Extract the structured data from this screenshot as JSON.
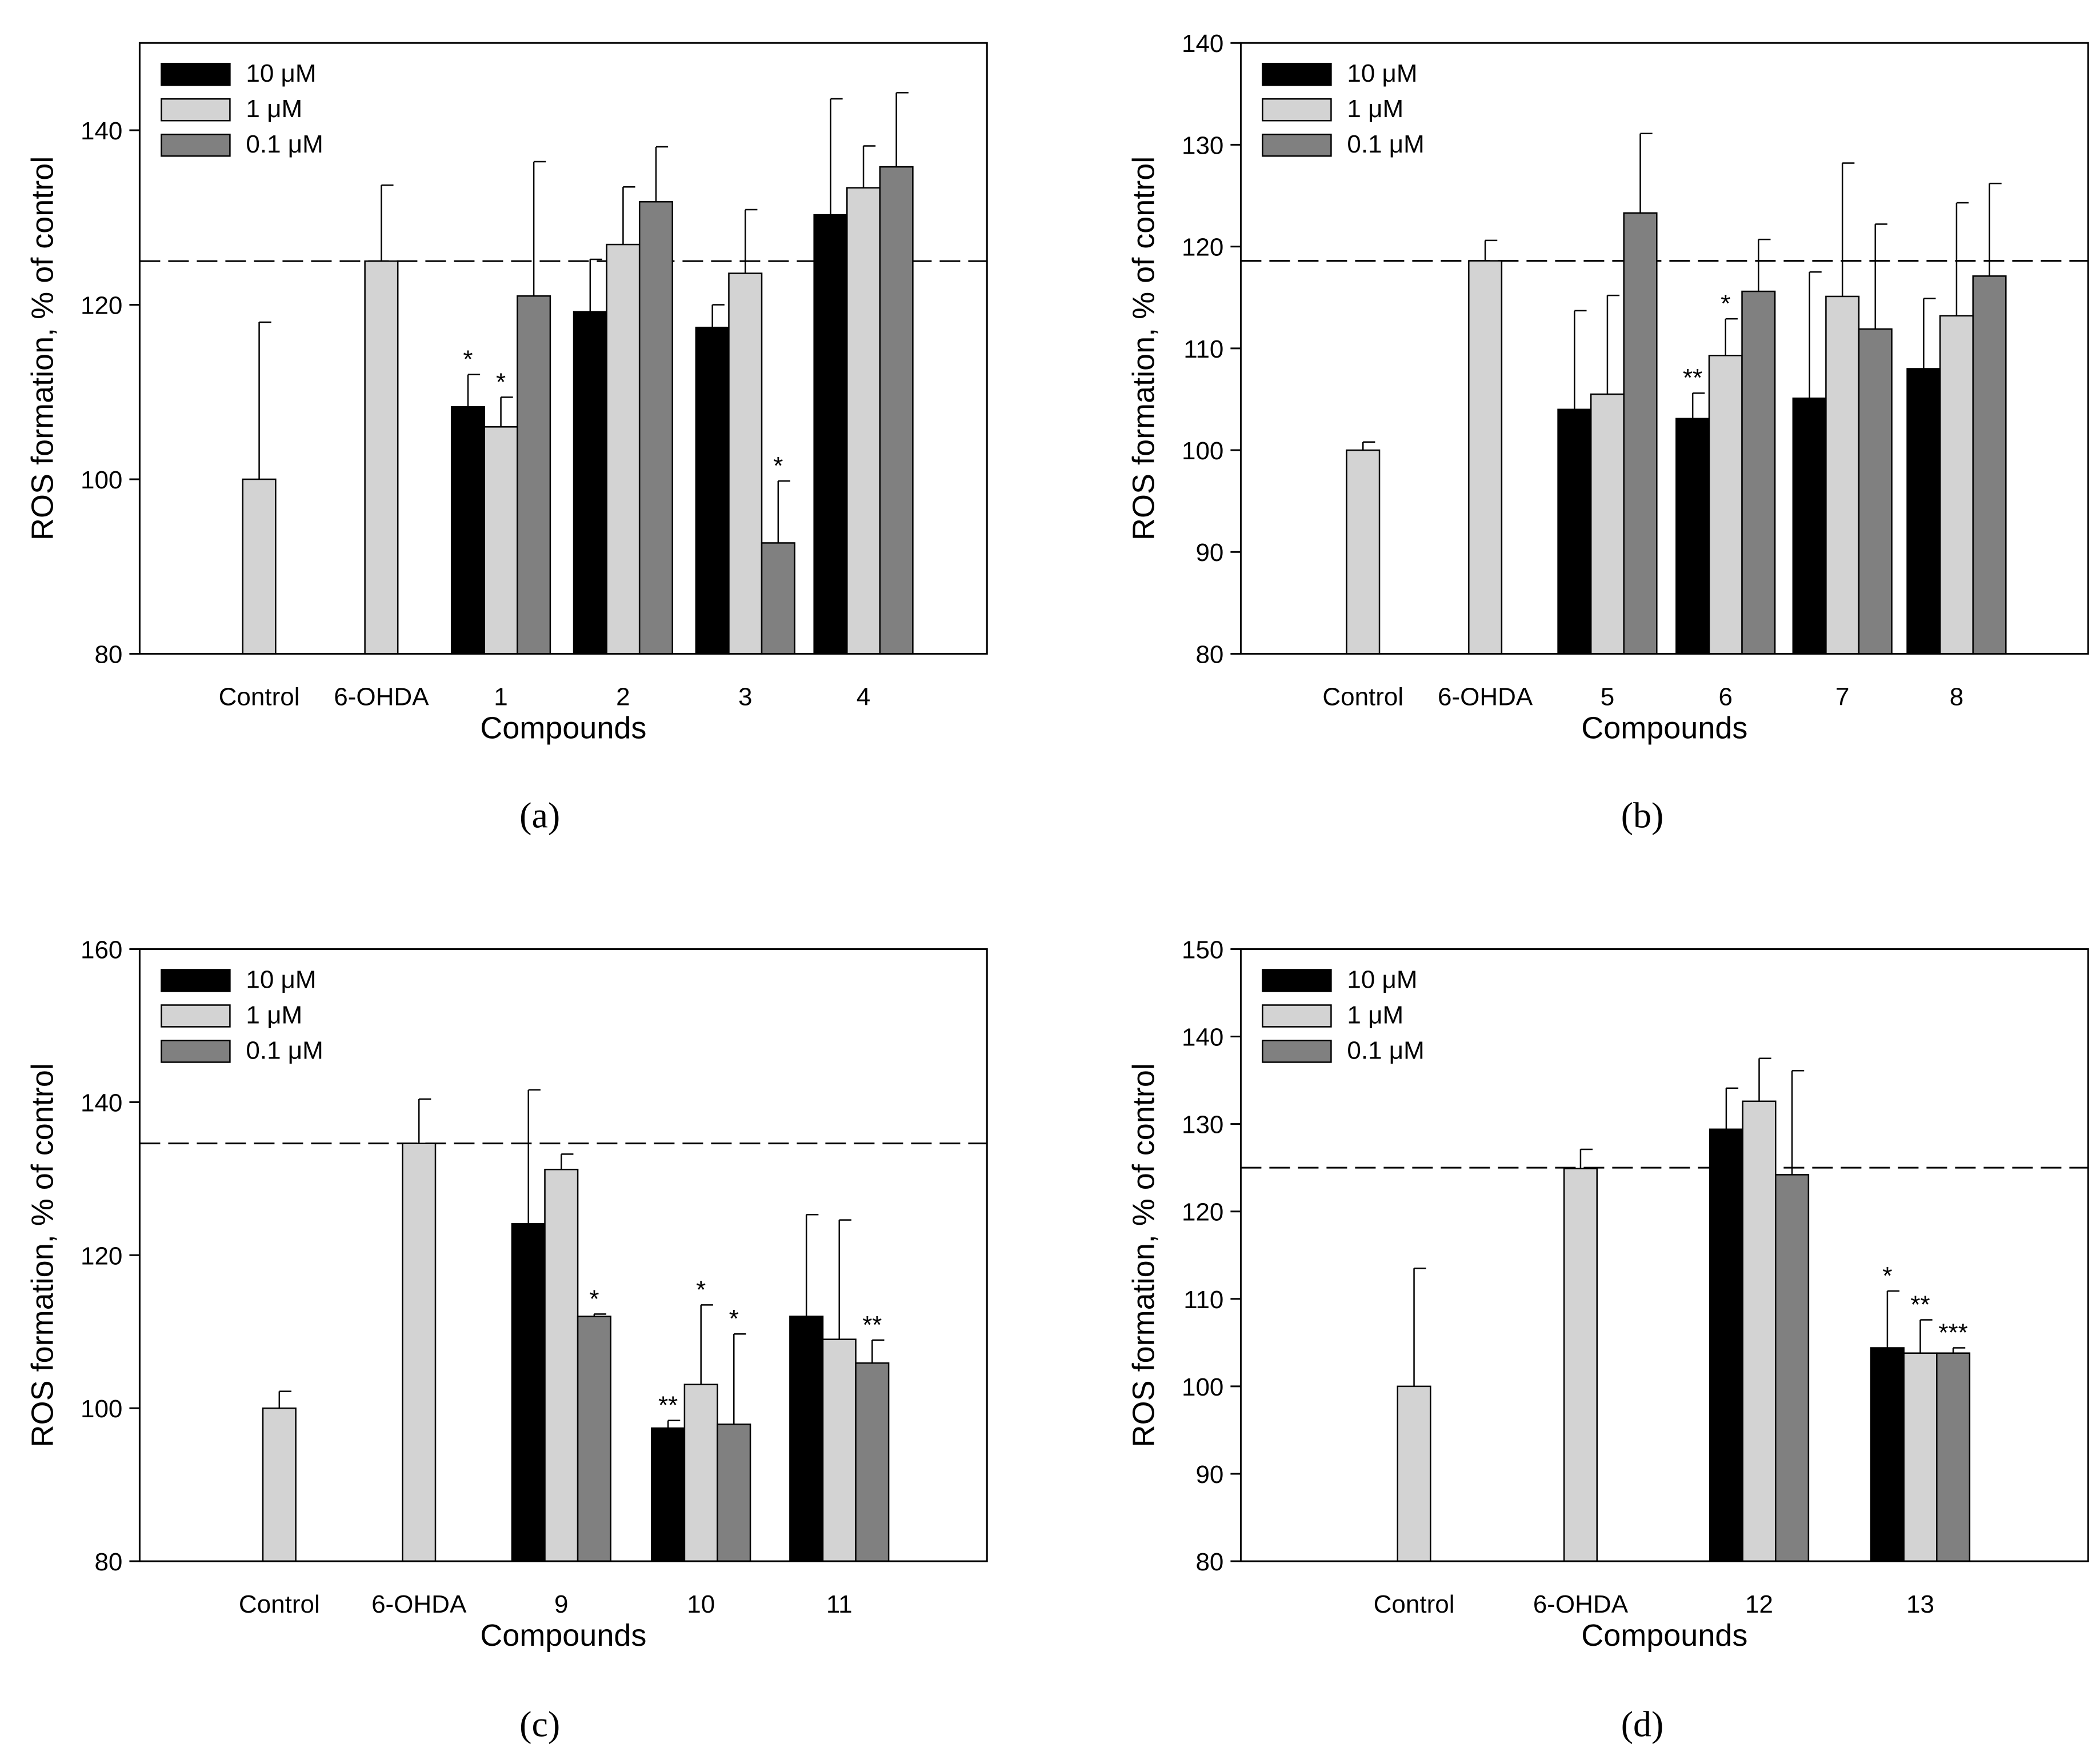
{
  "legend": [
    "10 μM",
    "1 μM",
    "0.1 μM"
  ],
  "series_colors": {
    "10 μM": "#000000",
    "1 μM": "#d3d3d3",
    "0.1 μM": "#808080",
    "single": "#d3d3d3"
  },
  "chart_data": [
    {
      "panel": "(a)",
      "type": "bar",
      "xlabel": "Compounds",
      "ylabel": "ROS formation, % of control",
      "ylim": [
        80,
        150
      ],
      "yticks": [
        80,
        100,
        120,
        140
      ],
      "reference_line": 125,
      "legend_position": "top-left",
      "groups": [
        {
          "label": "Control",
          "bars": [
            {
              "series": "single",
              "value": 100,
              "err": 18
            }
          ]
        },
        {
          "label": "6-OHDA",
          "bars": [
            {
              "series": "single",
              "value": 125,
              "err": 8.7
            }
          ]
        },
        {
          "label": "1",
          "bars": [
            {
              "series": "10 μM",
              "value": 108.3,
              "err": 3.7,
              "sig": "*"
            },
            {
              "series": "1 μM",
              "value": 106,
              "err": 3.4,
              "sig": "*"
            },
            {
              "series": "0.1 μM",
              "value": 121,
              "err": 15.4
            }
          ]
        },
        {
          "label": "2",
          "bars": [
            {
              "series": "10 μM",
              "value": 119.2,
              "err": 6
            },
            {
              "series": "1 μM",
              "value": 126.9,
              "err": 6.6
            },
            {
              "series": "0.1 μM",
              "value": 131.8,
              "err": 6.3
            }
          ]
        },
        {
          "label": "3",
          "bars": [
            {
              "series": "10 μM",
              "value": 117.4,
              "err": 2.6
            },
            {
              "series": "1 μM",
              "value": 123.6,
              "err": 7.3
            },
            {
              "series": "0.1 μM",
              "value": 92.7,
              "err": 7.1,
              "sig": "*"
            }
          ]
        },
        {
          "label": "4",
          "bars": [
            {
              "series": "10 μM",
              "value": 130.3,
              "err": 13.3
            },
            {
              "series": "1 μM",
              "value": 133.4,
              "err": 4.8
            },
            {
              "series": "0.1 μM",
              "value": 135.8,
              "err": 8.5
            }
          ]
        }
      ]
    },
    {
      "panel": "(b)",
      "type": "bar",
      "xlabel": "Compounds",
      "ylabel": "ROS formation, % of control",
      "ylim": [
        80,
        140
      ],
      "yticks": [
        80,
        90,
        100,
        110,
        120,
        130,
        140
      ],
      "reference_line": 118.6,
      "legend_position": "top-left",
      "groups": [
        {
          "label": "Control",
          "bars": [
            {
              "series": "single",
              "value": 100,
              "err": 0.8
            }
          ]
        },
        {
          "label": "6-OHDA",
          "bars": [
            {
              "series": "single",
              "value": 118.6,
              "err": 2
            }
          ]
        },
        {
          "label": "5",
          "bars": [
            {
              "series": "10 μM",
              "value": 104,
              "err": 9.7
            },
            {
              "series": "1 μM",
              "value": 105.5,
              "err": 9.7
            },
            {
              "series": "0.1 μM",
              "value": 123.3,
              "err": 7.8
            }
          ]
        },
        {
          "label": "6",
          "bars": [
            {
              "series": "10 μM",
              "value": 103.1,
              "err": 2.5,
              "sig": "**"
            },
            {
              "series": "1 μM",
              "value": 109.3,
              "err": 3.6,
              "sig": "*"
            },
            {
              "series": "0.1 μM",
              "value": 115.6,
              "err": 5.1
            }
          ]
        },
        {
          "label": "7",
          "bars": [
            {
              "series": "10 μM",
              "value": 105.1,
              "err": 12.4
            },
            {
              "series": "1 μM",
              "value": 115.1,
              "err": 13.1
            },
            {
              "series": "0.1 μM",
              "value": 111.9,
              "err": 10.3
            }
          ]
        },
        {
          "label": "8",
          "bars": [
            {
              "series": "10 μM",
              "value": 108,
              "err": 6.9
            },
            {
              "series": "1 μM",
              "value": 113.2,
              "err": 11.1
            },
            {
              "series": "0.1 μM",
              "value": 117.1,
              "err": 9.1
            }
          ]
        }
      ]
    },
    {
      "panel": "(c)",
      "type": "bar",
      "xlabel": "Compounds",
      "ylabel": "ROS formation, % of control",
      "ylim": [
        80,
        160
      ],
      "yticks": [
        80,
        100,
        120,
        140,
        160
      ],
      "reference_line": 134.6,
      "legend_position": "top-left",
      "groups": [
        {
          "label": "Control",
          "bars": [
            {
              "series": "single",
              "value": 100,
              "err": 2.2
            }
          ]
        },
        {
          "label": "6-OHDA",
          "bars": [
            {
              "series": "single",
              "value": 134.6,
              "err": 5.8
            }
          ]
        },
        {
          "label": "9",
          "bars": [
            {
              "series": "10 μM",
              "value": 124.1,
              "err": 17.5
            },
            {
              "series": "1 μM",
              "value": 131.2,
              "err": 2
            },
            {
              "series": "0.1 μM",
              "value": 112,
              "err": 0.3,
              "sig": "*"
            }
          ]
        },
        {
          "label": "10",
          "bars": [
            {
              "series": "10 μM",
              "value": 97.4,
              "err": 1,
              "sig": "**"
            },
            {
              "series": "1 μM",
              "value": 103.1,
              "err": 10.4,
              "sig": "*"
            },
            {
              "series": "0.1 μM",
              "value": 97.9,
              "err": 11.8,
              "sig": "*"
            }
          ]
        },
        {
          "label": "11",
          "bars": [
            {
              "series": "10 μM",
              "value": 112,
              "err": 13.3
            },
            {
              "series": "1 μM",
              "value": 109,
              "err": 15.6
            },
            {
              "series": "0.1 μM",
              "value": 105.9,
              "err": 3,
              "sig": "**"
            }
          ]
        }
      ]
    },
    {
      "panel": "(d)",
      "type": "bar",
      "xlabel": "Compounds",
      "ylabel": "ROS formation,  % of control",
      "ylim": [
        80,
        150
      ],
      "yticks": [
        80,
        90,
        100,
        110,
        120,
        130,
        140,
        150
      ],
      "reference_line": 125,
      "legend_position": "top-left",
      "groups": [
        {
          "label": "Control",
          "bars": [
            {
              "series": "single",
              "value": 100,
              "err": 13.5
            }
          ]
        },
        {
          "label": "6-OHDA",
          "bars": [
            {
              "series": "single",
              "value": 124.9,
              "err": 2.2
            }
          ]
        },
        {
          "label": "12",
          "bars": [
            {
              "series": "10 μM",
              "value": 129.4,
              "err": 4.7
            },
            {
              "series": "1 μM",
              "value": 132.6,
              "err": 4.9
            },
            {
              "series": "0.1 μM",
              "value": 124.2,
              "err": 11.9
            }
          ]
        },
        {
          "label": "13",
          "bars": [
            {
              "series": "10 μM",
              "value": 104.4,
              "err": 6.5,
              "sig": "*"
            },
            {
              "series": "1 μM",
              "value": 103.8,
              "err": 3.8,
              "sig": "**"
            },
            {
              "series": "0.1 μM",
              "value": 103.8,
              "err": 0.6,
              "sig": "***"
            }
          ]
        }
      ]
    }
  ]
}
